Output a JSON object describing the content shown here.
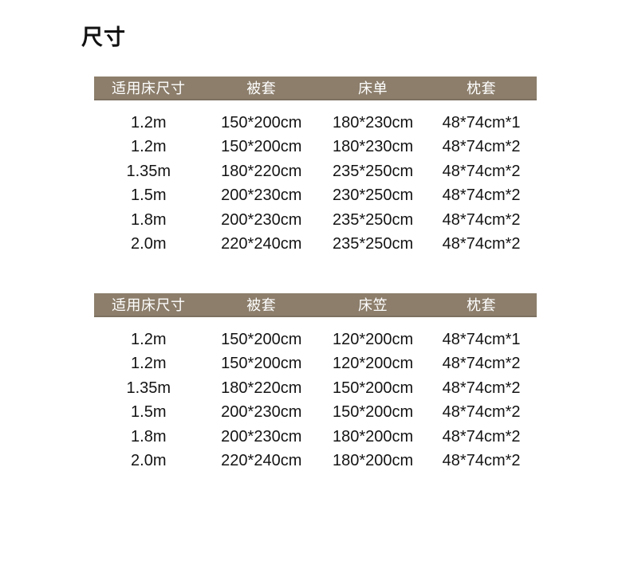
{
  "page": {
    "title": "尺寸"
  },
  "colors": {
    "header_bg": "#8c7e6b",
    "header_border": "#7d7160",
    "header_text": "#ffffff",
    "body_text": "#141414",
    "page_bg": "#ffffff"
  },
  "tables": [
    {
      "headers": [
        "适用床尺寸",
        "被套",
        "床单",
        "枕套"
      ],
      "rows": [
        [
          "1.2m",
          "150*200cm",
          "180*230cm",
          "48*74cm*1"
        ],
        [
          "1.2m",
          "150*200cm",
          "180*230cm",
          "48*74cm*2"
        ],
        [
          "1.35m",
          "180*220cm",
          "235*250cm",
          "48*74cm*2"
        ],
        [
          "1.5m",
          "200*230cm",
          "230*250cm",
          "48*74cm*2"
        ],
        [
          "1.8m",
          "200*230cm",
          "235*250cm",
          "48*74cm*2"
        ],
        [
          "2.0m",
          "220*240cm",
          "235*250cm",
          "48*74cm*2"
        ]
      ]
    },
    {
      "headers": [
        "适用床尺寸",
        "被套",
        "床笠",
        "枕套"
      ],
      "rows": [
        [
          "1.2m",
          "150*200cm",
          "120*200cm",
          "48*74cm*1"
        ],
        [
          "1.2m",
          "150*200cm",
          "120*200cm",
          "48*74cm*2"
        ],
        [
          "1.35m",
          "180*220cm",
          "150*200cm",
          "48*74cm*2"
        ],
        [
          "1.5m",
          "200*230cm",
          "150*200cm",
          "48*74cm*2"
        ],
        [
          "1.8m",
          "200*230cm",
          "180*200cm",
          "48*74cm*2"
        ],
        [
          "2.0m",
          "220*240cm",
          "180*200cm",
          "48*74cm*2"
        ]
      ]
    }
  ]
}
